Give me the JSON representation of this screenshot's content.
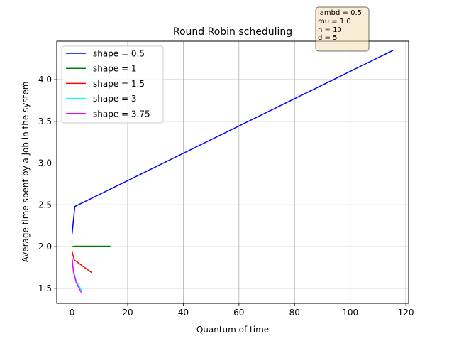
{
  "chart_data": {
    "type": "line",
    "title": "Round Robin scheduling",
    "xlabel": "Quantum of time",
    "ylabel": "Average time spent by a job in the system",
    "xlim": [
      -5.5,
      121
    ],
    "ylim": [
      1.32,
      4.46
    ],
    "xticks": [
      0,
      20,
      40,
      60,
      80,
      100,
      120
    ],
    "yticks": [
      1.5,
      2.0,
      2.5,
      3.0,
      3.5,
      4.0
    ],
    "grid": true,
    "legend_position": "top-left",
    "annotation": [
      "lambd = 0.5",
      "mu = 1.0",
      "n = 10",
      "d = 5"
    ],
    "series": [
      {
        "name": "shape = 0.5",
        "color": "#0000ff",
        "x": [
          0,
          1,
          115.4
        ],
        "y": [
          2.15,
          2.48,
          4.35
        ]
      },
      {
        "name": "shape = 1",
        "color": "#008000",
        "x": [
          0,
          1,
          13.8
        ],
        "y": [
          2.0,
          2.005,
          2.005
        ]
      },
      {
        "name": "shape = 1.5",
        "color": "#ff0000",
        "x": [
          0,
          0.8,
          7.0
        ],
        "y": [
          1.94,
          1.84,
          1.69
        ]
      },
      {
        "name": "shape = 3",
        "color": "#00ffff",
        "x": [
          0,
          0.5,
          1.5,
          3.5
        ],
        "y": [
          1.86,
          1.72,
          1.59,
          1.47
        ]
      },
      {
        "name": "shape = 3.75",
        "color": "#ff00ff",
        "x": [
          0,
          0.5,
          1.5,
          3.3
        ],
        "y": [
          1.86,
          1.7,
          1.57,
          1.45
        ]
      }
    ]
  }
}
